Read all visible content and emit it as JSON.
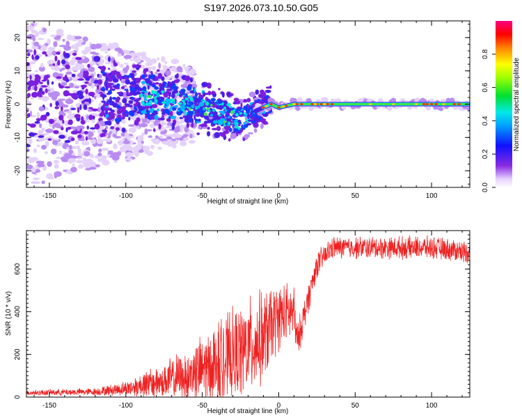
{
  "title": "S197.2026.073.10.50.G05",
  "chart_data": [
    {
      "type": "heatmap",
      "panel": "top",
      "xlabel": "Height of straight line (km)",
      "ylabel": "Frequency (Hz)",
      "xlim": [
        -165,
        125
      ],
      "ylim": [
        -25,
        25
      ],
      "xticks": [
        -150,
        -100,
        -50,
        0,
        50,
        100
      ],
      "yticks": [
        -20,
        -10,
        0,
        10,
        20
      ],
      "colorbar": {
        "label": "Normalized spectral amplitude",
        "range": [
          0,
          1
        ],
        "ticks": [
          0.0,
          0.2,
          0.4,
          0.6,
          0.8
        ],
        "colormap": "rainbow (violet-blue-cyan-green-yellow-red-magenta)"
      },
      "trend": [
        {
          "x": -80,
          "freq": 2.0
        },
        {
          "x": -50,
          "freq": -1.0
        },
        {
          "x": -25,
          "freq": -5.0
        },
        {
          "x": -15,
          "freq": -2.0
        },
        {
          "x": -5,
          "freq": 0.0
        },
        {
          "x": 0,
          "freq": -1.0
        },
        {
          "x": 10,
          "freq": 0.0
        },
        {
          "x": 50,
          "freq": 0.0
        },
        {
          "x": 125,
          "freq": 0.0
        }
      ]
    },
    {
      "type": "line",
      "panel": "bottom",
      "xlabel": "Height of straight line (km)",
      "ylabel": "SNR (10 * v/v)",
      "xlim": [
        -165,
        125
      ],
      "ylim": [
        0,
        780
      ],
      "xticks": [
        -150,
        -100,
        -50,
        0,
        50,
        100
      ],
      "yticks": [
        0,
        200,
        400,
        600
      ],
      "series": [
        {
          "name": "SNR",
          "color": "#ee2222",
          "envelope": [
            {
              "x": -165,
              "mean": 20,
              "spread": 15
            },
            {
              "x": -120,
              "mean": 25,
              "spread": 20
            },
            {
              "x": -100,
              "mean": 40,
              "spread": 40
            },
            {
              "x": -80,
              "mean": 70,
              "spread": 90
            },
            {
              "x": -60,
              "mean": 100,
              "spread": 140
            },
            {
              "x": -40,
              "mean": 160,
              "spread": 220
            },
            {
              "x": -20,
              "mean": 230,
              "spread": 260
            },
            {
              "x": -10,
              "mean": 280,
              "spread": 250
            },
            {
              "x": 0,
              "mean": 380,
              "spread": 180
            },
            {
              "x": 10,
              "mean": 400,
              "spread": 150
            },
            {
              "x": 12,
              "mean": 250,
              "spread": 100
            },
            {
              "x": 20,
              "mean": 480,
              "spread": 80
            },
            {
              "x": 25,
              "mean": 620,
              "spread": 70
            },
            {
              "x": 35,
              "mean": 700,
              "spread": 60
            },
            {
              "x": 100,
              "mean": 700,
              "spread": 60
            },
            {
              "x": 125,
              "mean": 680,
              "spread": 60
            }
          ]
        }
      ]
    }
  ]
}
